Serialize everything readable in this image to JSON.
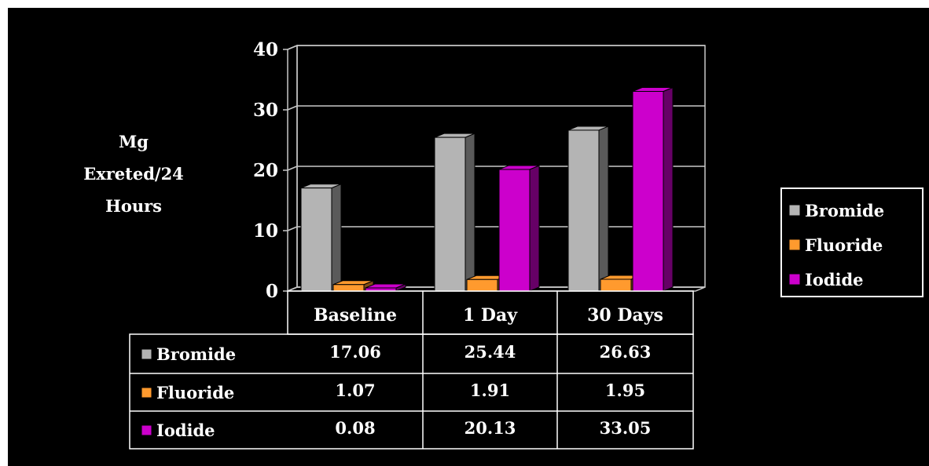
{
  "chart_data": {
    "type": "bar",
    "ylabel_lines": [
      "Mg",
      "Exreted/24",
      "Hours"
    ],
    "categories": [
      "Baseline",
      "1 Day",
      "30 Days"
    ],
    "ylim": [
      0,
      40
    ],
    "yticks": [
      0,
      10,
      20,
      30,
      40
    ],
    "grid": true,
    "legend_position": "right",
    "series": [
      {
        "name": "Bromide",
        "values": [
          17.06,
          25.44,
          26.63
        ],
        "labels": [
          "17.06",
          "25.44",
          "26.63"
        ],
        "color": "#b4b4b4"
      },
      {
        "name": "Fluoride",
        "values": [
          1.07,
          1.91,
          1.95
        ],
        "labels": [
          "1.07",
          "1.91",
          "1.95"
        ],
        "color": "#ff9a2e"
      },
      {
        "name": "Iodide",
        "values": [
          0.08,
          20.13,
          33.05
        ],
        "labels": [
          "0.08",
          "20.13",
          "33.05"
        ],
        "color": "#cc00cc"
      }
    ]
  },
  "colors": {
    "background": "#000000",
    "text": "#ffffff",
    "grid": "#ffffff"
  }
}
